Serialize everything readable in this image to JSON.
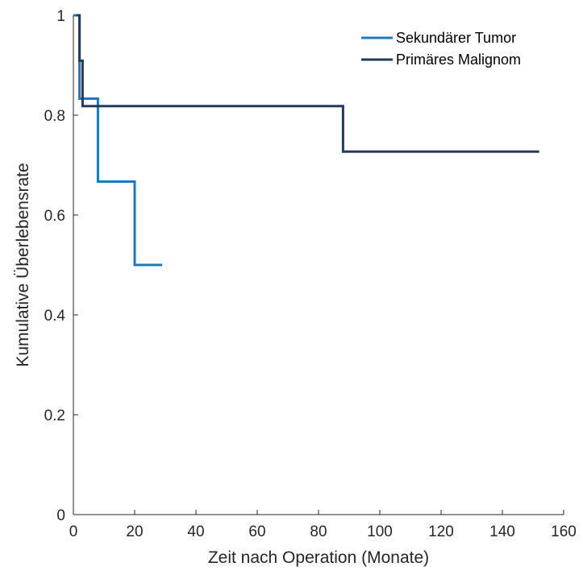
{
  "chart_data": {
    "type": "line",
    "step": true,
    "title": "",
    "xlabel": "Zeit nach Operation (Monate)",
    "ylabel": "Kumulative Überlebensrate",
    "xlim": [
      0,
      160
    ],
    "ylim": [
      0,
      1
    ],
    "xticks": [
      0,
      20,
      40,
      60,
      80,
      100,
      120,
      140,
      160
    ],
    "xtick_labels": [
      "0",
      "20",
      "40",
      "60",
      "80",
      "100",
      "120",
      "140",
      "160"
    ],
    "yticks": [
      0,
      0.2,
      0.4,
      0.6,
      0.8,
      1
    ],
    "ytick_labels": [
      "0",
      "0.2",
      "0.4",
      "0.6",
      "0.8",
      "1"
    ],
    "grid": false,
    "legend_position": "top-right",
    "series": [
      {
        "name": "Sekundärer Tumor",
        "color": "#1f77c2",
        "x": [
          0,
          2,
          2,
          8,
          8,
          20,
          20,
          29
        ],
        "y": [
          1,
          1,
          0.833,
          0.833,
          0.667,
          0.667,
          0.5,
          0.5
        ]
      },
      {
        "name": "Primäres Malignom",
        "color": "#243a5e",
        "x": [
          1,
          2,
          2,
          3,
          3,
          88,
          88,
          152
        ],
        "y": [
          1,
          1,
          0.909,
          0.909,
          0.818,
          0.818,
          0.727,
          0.727
        ]
      }
    ]
  }
}
